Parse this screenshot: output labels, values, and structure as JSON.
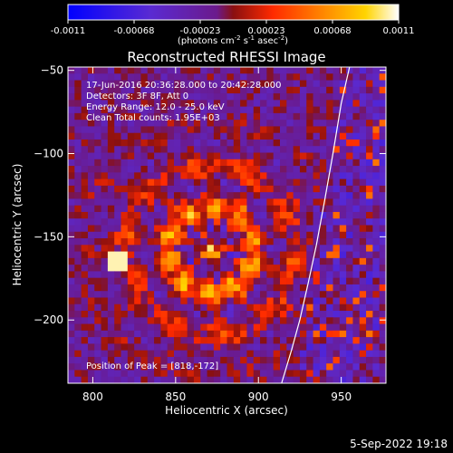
{
  "colorbar": {
    "ticks": [
      "-0.0011",
      "-0.00068",
      "-0.00023",
      "0.00023",
      "0.00068",
      "0.0011"
    ],
    "units_prefix": "(photons cm",
    "units_exp1": "-2",
    "units_mid": " s",
    "units_exp2": "-1",
    "units_tail": " asec",
    "units_exp3": "-2",
    "units_close": ")",
    "range": [
      -0.0011,
      0.0011
    ],
    "colormap": "rhessi-signed (blue-purple-red-orange-yellow-white)"
  },
  "chart_data": {
    "type": "heatmap",
    "title": "Reconstructed RHESSI Image",
    "xlabel": "Heliocentric X (arcsec)",
    "ylabel": "Heliocentric Y (arcsec)",
    "xlim": [
      785,
      977
    ],
    "ylim": [
      -238,
      -48
    ],
    "xticks": [
      800,
      850,
      900,
      950
    ],
    "yticks": [
      -200,
      -150,
      -100,
      -50
    ],
    "xticklabels": [
      "800",
      "850",
      "900",
      "950"
    ],
    "yticklabels": [
      "−200",
      "−150",
      "−100",
      "−50"
    ],
    "peak": [
      818,
      -172
    ],
    "limb_curve": {
      "x": [
        955,
        950,
        945,
        940,
        935,
        930,
        925,
        920,
        914
      ],
      "y": [
        -48,
        -70,
        -100,
        -128,
        -155,
        -178,
        -200,
        -218,
        -238
      ]
    },
    "annotations": [
      "17-Jun-2016 20:36:28.000 to 20:42:28.000",
      "Detectors: 3F 8F, Att 0",
      "Energy Range: 12.0 - 25.0 keV",
      "Clean     Total counts: 1.95E+03",
      "Position of Peak = [818,-172]"
    ],
    "grid": false
  },
  "footer": {
    "date": "5-Sep-2022 19:18"
  }
}
